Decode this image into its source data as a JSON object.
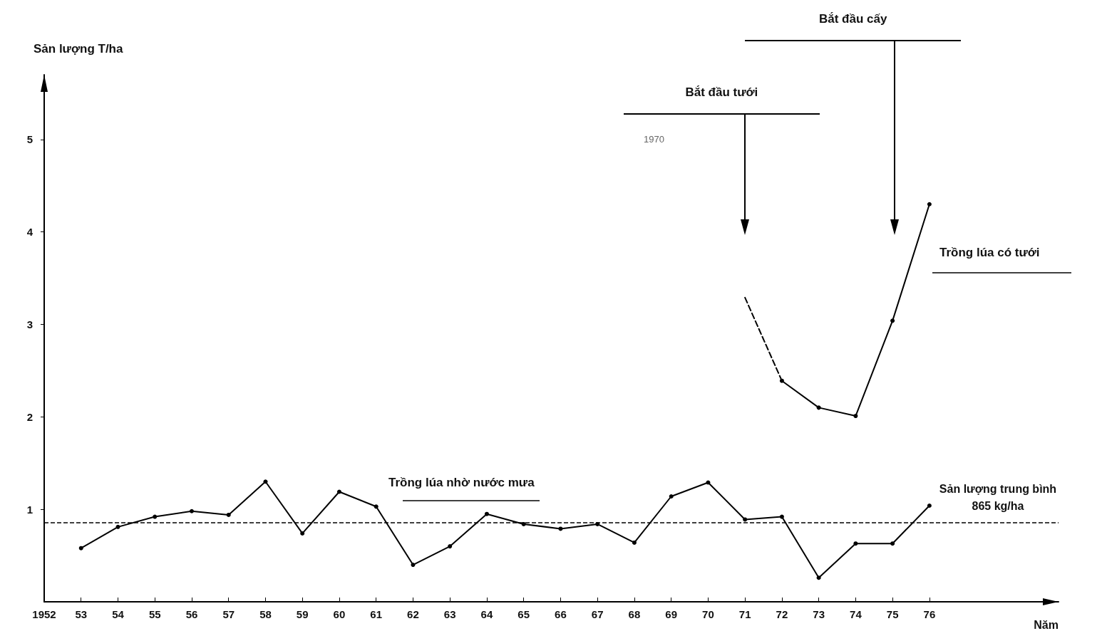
{
  "chart_data": {
    "type": "line",
    "xlabel": "Năm",
    "ylabel": "Sản lượng T/ha",
    "xlim": [
      1952,
      1979.5
    ],
    "ylim": [
      0,
      5.7
    ],
    "xticks": [
      {
        "value": 1952,
        "label": "1952"
      },
      {
        "value": 1953,
        "label": "53"
      },
      {
        "value": 1954,
        "label": "54"
      },
      {
        "value": 1955,
        "label": "55"
      },
      {
        "value": 1956,
        "label": "56"
      },
      {
        "value": 1957,
        "label": "57"
      },
      {
        "value": 1958,
        "label": "58"
      },
      {
        "value": 1959,
        "label": "59"
      },
      {
        "value": 1960,
        "label": "60"
      },
      {
        "value": 1961,
        "label": "61"
      },
      {
        "value": 1962,
        "label": "62"
      },
      {
        "value": 1963,
        "label": "63"
      },
      {
        "value": 1964,
        "label": "64"
      },
      {
        "value": 1965,
        "label": "65"
      },
      {
        "value": 1966,
        "label": "66"
      },
      {
        "value": 1967,
        "label": "67"
      },
      {
        "value": 1968,
        "label": "68"
      },
      {
        "value": 1969,
        "label": "69"
      },
      {
        "value": 1970,
        "label": "70"
      },
      {
        "value": 1971,
        "label": "71"
      },
      {
        "value": 1972,
        "label": "72"
      },
      {
        "value": 1973,
        "label": "73"
      },
      {
        "value": 1974,
        "label": "74"
      },
      {
        "value": 1975,
        "label": "75"
      },
      {
        "value": 1976,
        "label": "76"
      }
    ],
    "yticks": [
      1,
      2,
      3,
      4,
      5
    ],
    "series": [
      {
        "color": "#000000",
        "marker": "circle",
        "line_style": "solid",
        "x": [
          1953,
          1954,
          1955,
          1956,
          1957,
          1958,
          1959,
          1960,
          1961,
          1962,
          1963,
          1964,
          1965,
          1966,
          1967,
          1968,
          1969,
          1970,
          1971,
          1972,
          1973,
          1974,
          1975,
          1976
        ],
        "values": [
          0.58,
          0.81,
          0.92,
          0.98,
          0.94,
          1.3,
          0.74,
          1.19,
          1.03,
          0.4,
          0.6,
          0.95,
          0.84,
          0.79,
          0.84,
          0.64,
          1.14,
          1.29,
          0.89,
          0.92,
          0.26,
          0.63,
          0.63,
          1.04
        ]
      },
      {
        "color": "#000000",
        "marker": "none",
        "line_style": "dashed",
        "x": [
          1971,
          1972
        ],
        "values": [
          3.29,
          2.39
        ]
      },
      {
        "color": "#000000",
        "marker": "circle",
        "line_style": "solid",
        "x": [
          1972,
          1973,
          1974,
          1975,
          1976
        ],
        "values": [
          2.39,
          2.1,
          2.01,
          3.04,
          4.3
        ]
      }
    ],
    "ref_lines": [
      {
        "axis": "y",
        "value": 0.865,
        "label": "Sản lượng trung bình\n865 kg/ha",
        "line_style": "dashed",
        "color": "#000000"
      }
    ],
    "annotations": [
      "Bắt đầu tưới",
      "Bắt đầu cấy",
      "Trồng lúa có tưới",
      "Trồng lúa nhờ nước mưa",
      "1970"
    ],
    "grid": false
  }
}
